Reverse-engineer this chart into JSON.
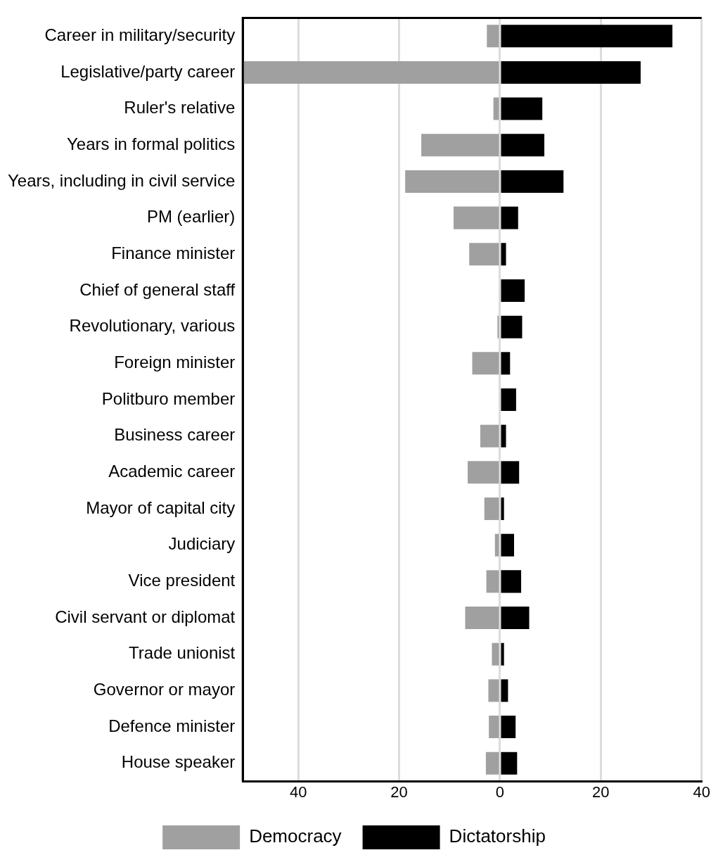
{
  "chart_data": {
    "type": "bar",
    "orientation": "horizontal",
    "stacked": true,
    "categories": [
      "Career in military/security",
      "Legislative/party career",
      "Ruler's relative",
      "Years in formal politics",
      "Years, including in civil service",
      "PM (earlier)",
      "Finance minister",
      "Chief of general staff",
      "Revolutionary, various",
      "Foreign minister",
      "Politburo member",
      "Business career",
      "Academic career",
      "Mayor of capital city",
      "Judiciary",
      "Vice president",
      "Civil servant or diplomat",
      "Trade unionist",
      "Governor or mayor",
      "Defence minister",
      "House speaker"
    ],
    "series": [
      {
        "name": "Democracy",
        "color": "#a0a0a0",
        "values": [
          -2.6,
          -51,
          -1.3,
          -15.6,
          -18.8,
          -9.2,
          -6.1,
          0,
          -0.5,
          -5.5,
          0,
          -3.9,
          -6.4,
          -3.1,
          -1.0,
          -2.7,
          -6.9,
          -1.6,
          -2.3,
          -2.2,
          -2.8
        ]
      },
      {
        "name": "Dictatorship",
        "color": "#000000",
        "values": [
          34.2,
          27.9,
          8.4,
          8.8,
          12.6,
          3.6,
          1.2,
          4.9,
          4.4,
          2.0,
          3.2,
          1.2,
          3.8,
          0.8,
          2.8,
          4.2,
          5.8,
          0.8,
          1.6,
          3.1,
          3.4
        ]
      }
    ],
    "xlim": [
      -51,
      40
    ],
    "xticks": [
      {
        "value": -40,
        "label": "40"
      },
      {
        "value": -20,
        "label": "20"
      },
      0,
      20,
      40
    ],
    "grid": "x",
    "legend": "bottom"
  }
}
